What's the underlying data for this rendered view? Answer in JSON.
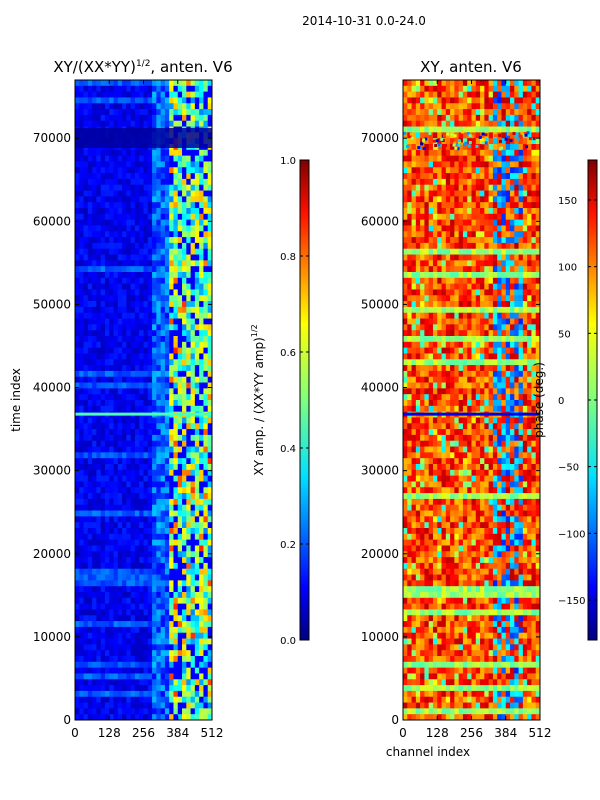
{
  "chart_data": {
    "suptitle": "2014-10-31 0.0-24.0",
    "panels": [
      {
        "type": "heatmap",
        "title_main": "XY/(XX*YY)",
        "title_sup": "1/2",
        "title_tail": ", anten. V6",
        "xlabel": "",
        "ylabel": "time index",
        "x_ticks": [
          "0",
          "128",
          "256",
          "384",
          "512"
        ],
        "y_ticks": [
          "0",
          "10000",
          "20000",
          "30000",
          "40000",
          "50000",
          "60000",
          "70000"
        ],
        "x_range": [
          0,
          512
        ],
        "y_range": [
          0,
          77000
        ],
        "colorbar": {
          "label_main": "XY amp. / (XX*YY amp)",
          "label_sup": "1/2",
          "ticks": [
            "0.0",
            "0.2",
            "0.4",
            "0.6",
            "0.8",
            "1.0"
          ],
          "range": [
            0,
            1
          ],
          "colormap": "jet"
        }
      },
      {
        "type": "heatmap",
        "title_main": "XY, anten. V6",
        "title_sup": "",
        "title_tail": "",
        "xlabel": "channel index",
        "ylabel": "",
        "x_ticks": [
          "0",
          "128",
          "256",
          "384",
          "512"
        ],
        "y_ticks": [
          "0",
          "10000",
          "20000",
          "30000",
          "40000",
          "50000",
          "60000",
          "70000"
        ],
        "x_range": [
          0,
          512
        ],
        "y_range": [
          0,
          77000
        ],
        "colorbar": {
          "label_main": "phase (deg.)",
          "label_sup": "",
          "ticks": [
            "−150",
            "−100",
            "−50",
            "0",
            "50",
            "100",
            "150"
          ],
          "range": [
            -180,
            180
          ],
          "colormap": "jet"
        }
      }
    ]
  },
  "colors": {
    "jet_stops": [
      "#00007f",
      "#0000ff",
      "#007fff",
      "#00ffff",
      "#7fff7f",
      "#ffff00",
      "#ff7f00",
      "#ff0000",
      "#7f0000"
    ]
  }
}
